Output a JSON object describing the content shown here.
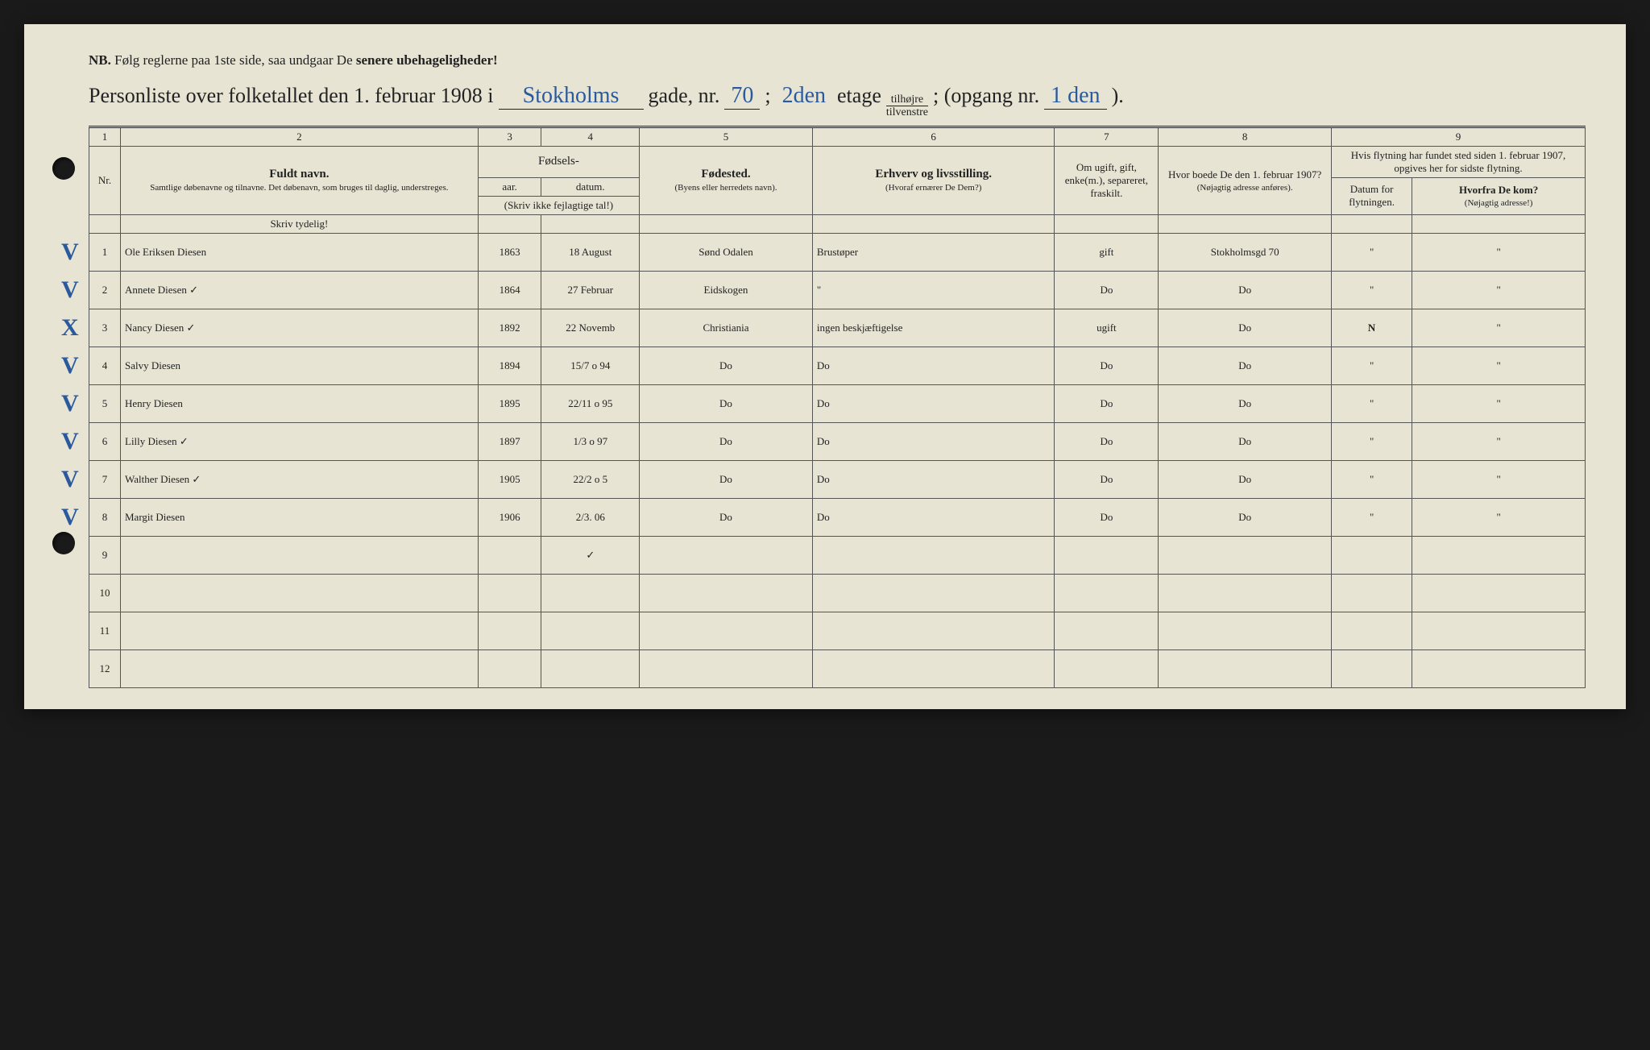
{
  "nb": {
    "label": "NB.",
    "text_1": "Følg reglerne paa 1ste side, saa undgaar De",
    "text_2": "senere ubehageligheder!"
  },
  "title": {
    "prefix": "Personliste over folketallet den 1. februar 1908 i",
    "street": "Stokholms",
    "gade_label": "gade, nr.",
    "house_nr": "70",
    "semicolon1": ";",
    "floor": "2den",
    "etage_label": "etage",
    "side_top": "tilhøjre",
    "side_bottom": "tilvenstre",
    "semicolon2": "; (opgang nr.",
    "opgang": "1 den",
    "close": ")."
  },
  "col_numbers": [
    "1",
    "2",
    "3",
    "4",
    "5",
    "6",
    "7",
    "8",
    "9"
  ],
  "headers": {
    "nr": "Nr.",
    "name": "Fuldt navn.",
    "name_sub": "Samtlige døbenavne og tilnavne. Det døbenavn, som bruges til daglig, understreges.",
    "birth": "Fødsels-",
    "year": "aar.",
    "date": "datum.",
    "birth_note": "(Skriv ikke fejlagtige tal!)",
    "birthplace": "Fødested.",
    "birthplace_sub": "(Byens eller herredets navn).",
    "occupation": "Erhverv og livsstilling.",
    "occupation_sub": "(Hvoraf ernærer De Dem?)",
    "marital": "Om ugift, gift, enke(m.), separeret, fraskilt.",
    "prev_addr": "Hvor boede De den 1. februar 1907?",
    "prev_addr_sub": "(Nøjagtig adresse anføres).",
    "move": "Hvis flytning har fundet sted siden 1. februar 1907, opgives her for sidste flytning.",
    "move_date": "Datum for flytningen.",
    "move_from": "Hvorfra De kom?",
    "move_from_sub": "(Nøjagtig adresse!)",
    "skriv_tydelig": "Skriv tydelig!"
  },
  "rows": [
    {
      "check": "V",
      "nr": "1",
      "name": "Ole Eriksen Diesen",
      "year": "1863",
      "date": "18 August",
      "place": "Sønd Odalen",
      "occ": "Brustøper",
      "status": "gift",
      "addr": "Stokholmsgd 70",
      "mdate": "\"",
      "mfrom": "\"",
      "red": ""
    },
    {
      "check": "V",
      "nr": "2",
      "name": "Annete Diesen ✓",
      "year": "1864",
      "date": "27 Februar",
      "place": "Eidskogen",
      "occ": "\"",
      "status": "Do",
      "addr": "Do",
      "mdate": "\"",
      "mfrom": "\"",
      "red": ""
    },
    {
      "check": "X",
      "nr": "3",
      "name": "Nancy Diesen ✓",
      "year": "1892",
      "date": "22 Novemb",
      "place": "Christiania",
      "occ": "ingen beskjæftigelse",
      "status": "ugift",
      "addr": "Do",
      "mdate": "",
      "mfrom": "\"",
      "red": "N"
    },
    {
      "check": "V",
      "nr": "4",
      "name": "Salvy Diesen",
      "year": "1894",
      "date": "15/7 o 94",
      "place": "Do",
      "occ": "Do",
      "status": "Do",
      "addr": "Do",
      "mdate": "\"",
      "mfrom": "\"",
      "red": ""
    },
    {
      "check": "V",
      "nr": "5",
      "name": "Henry Diesen",
      "year": "1895",
      "date": "22/11 o 95",
      "place": "Do",
      "occ": "Do",
      "status": "Do",
      "addr": "Do",
      "mdate": "\"",
      "mfrom": "\"",
      "red": ""
    },
    {
      "check": "V",
      "nr": "6",
      "name": "Lilly Diesen ✓",
      "year": "1897",
      "date": "1/3 o 97",
      "place": "Do",
      "occ": "Do",
      "status": "Do",
      "addr": "Do",
      "mdate": "\"",
      "mfrom": "\"",
      "red": ""
    },
    {
      "check": "V",
      "nr": "7",
      "name": "Walther Diesen ✓",
      "year": "1905",
      "date": "22/2 o 5",
      "place": "Do",
      "occ": "Do",
      "status": "Do",
      "addr": "Do",
      "mdate": "\"",
      "mfrom": "\"",
      "red": ""
    },
    {
      "check": "V",
      "nr": "8",
      "name": "Margit Diesen",
      "year": "1906",
      "date": "2/3. 06",
      "place": "Do",
      "occ": "Do",
      "status": "Do",
      "addr": "Do",
      "mdate": "\"",
      "mfrom": "\"",
      "red": ""
    },
    {
      "check": "",
      "nr": "9",
      "name": "",
      "year": "",
      "date": "✓",
      "place": "",
      "occ": "",
      "status": "",
      "addr": "",
      "mdate": "",
      "mfrom": "",
      "red": ""
    },
    {
      "check": "",
      "nr": "10",
      "name": "",
      "year": "",
      "date": "",
      "place": "",
      "occ": "",
      "status": "",
      "addr": "",
      "mdate": "",
      "mfrom": "",
      "red": ""
    },
    {
      "check": "",
      "nr": "11",
      "name": "",
      "year": "",
      "date": "",
      "place": "",
      "occ": "",
      "status": "",
      "addr": "",
      "mdate": "",
      "mfrom": "",
      "red": ""
    },
    {
      "check": "",
      "nr": "12",
      "name": "",
      "year": "",
      "date": "",
      "place": "",
      "occ": "",
      "status": "",
      "addr": "",
      "mdate": "",
      "mfrom": "",
      "red": ""
    }
  ],
  "colors": {
    "paper": "#e8e4d4",
    "ink_print": "#222222",
    "ink_blue": "#2a5a9e",
    "ink_red": "#c43530",
    "border": "#555555"
  }
}
